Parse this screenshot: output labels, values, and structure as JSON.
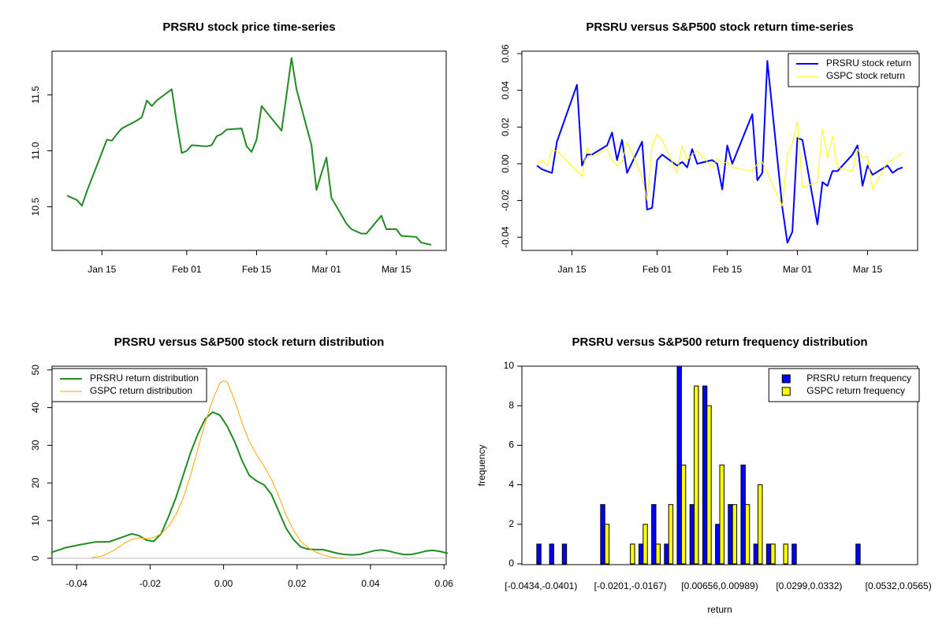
{
  "chart_data": [
    {
      "type": "line",
      "title": "PRSRU stock price time-series",
      "x": [
        "Jan 08",
        "Jan 09",
        "Jan 10",
        "Jan 11",
        "Jan 12",
        "Jan 16",
        "Jan 17",
        "Jan 18",
        "Jan 19",
        "Jan 22",
        "Jan 23",
        "Jan 24",
        "Jan 25",
        "Jan 26",
        "Jan 29",
        "Jan 30",
        "Jan 31",
        "Feb 01",
        "Feb 02",
        "Feb 05",
        "Feb 06",
        "Feb 07",
        "Feb 08",
        "Feb 09",
        "Feb 12",
        "Feb 13",
        "Feb 14",
        "Feb 15",
        "Feb 16",
        "Feb 20",
        "Feb 21",
        "Feb 22",
        "Feb 23",
        "Feb 26",
        "Feb 27",
        "Feb 28",
        "Mar 01",
        "Mar 02",
        "Mar 05",
        "Mar 06",
        "Mar 07",
        "Mar 08",
        "Mar 09",
        "Mar 12",
        "Mar 13",
        "Mar 14",
        "Mar 15",
        "Mar 16",
        "Mar 19",
        "Mar 20",
        "Mar 21",
        "Mar 22"
      ],
      "series": [
        {
          "color": "#228B22",
          "values": [
            10.6,
            10.58,
            10.56,
            10.51,
            10.64,
            11.1,
            11.09,
            11.15,
            11.2,
            11.27,
            11.3,
            11.45,
            11.4,
            11.45,
            11.55,
            11.25,
            10.98,
            11.0,
            11.05,
            11.04,
            11.05,
            11.13,
            11.15,
            11.19,
            11.2,
            11.04,
            10.99,
            11.1,
            11.4,
            11.18,
            11.5,
            11.83,
            11.55,
            11.05,
            10.65,
            10.8,
            10.94,
            10.58,
            10.35,
            10.3,
            10.28,
            10.26,
            10.26,
            10.42,
            10.3,
            10.3,
            10.3,
            10.24,
            10.23,
            10.18,
            10.17,
            10.16
          ]
        }
      ],
      "xlim": [
        "Jan 05",
        "Mar 25"
      ],
      "xticks": [
        "Jan 15",
        "Feb 01",
        "Feb 15",
        "Mar 01",
        "Mar 15"
      ],
      "ylim": [
        10.11,
        11.89
      ],
      "yticks": [
        10.5,
        {
          "value": 11,
          "label": "11.0"
        },
        11.5
      ]
    },
    {
      "type": "line",
      "title": "PRSRU versus S&P500 stock return time-series",
      "x": [
        "Jan 08",
        "Jan 09",
        "Jan 10",
        "Jan 11",
        "Jan 12",
        "Jan 16",
        "Jan 17",
        "Jan 18",
        "Jan 19",
        "Jan 22",
        "Jan 23",
        "Jan 24",
        "Jan 25",
        "Jan 26",
        "Jan 29",
        "Jan 30",
        "Jan 31",
        "Feb 01",
        "Feb 02",
        "Feb 05",
        "Feb 06",
        "Feb 07",
        "Feb 08",
        "Feb 09",
        "Feb 12",
        "Feb 13",
        "Feb 14",
        "Feb 15",
        "Feb 16",
        "Feb 20",
        "Feb 21",
        "Feb 22",
        "Feb 23",
        "Feb 26",
        "Feb 27",
        "Feb 28",
        "Mar 01",
        "Mar 02",
        "Mar 05",
        "Mar 06",
        "Mar 07",
        "Mar 08",
        "Mar 09",
        "Mar 12",
        "Mar 13",
        "Mar 14",
        "Mar 15",
        "Mar 16",
        "Mar 19",
        "Mar 20",
        "Mar 21",
        "Mar 22"
      ],
      "series": [
        {
          "name": "PRSRU stock return",
          "color": "#0000FF",
          "values": [
            -0.001,
            -0.003,
            -0.004,
            -0.005,
            0.012,
            0.043,
            -0.001,
            0.005,
            0.005,
            0.01,
            0.017,
            0.002,
            0.013,
            -0.005,
            0.012,
            -0.025,
            -0.024,
            0.002,
            0.005,
            -0.001,
            0.001,
            -0.002,
            0.008,
            0.0,
            0.002,
            0.0,
            -0.014,
            0.01,
            0.0,
            0.027,
            -0.009,
            -0.005,
            0.056,
            -0.024,
            -0.043,
            -0.037,
            0.014,
            0.013,
            -0.033,
            -0.01,
            -0.012,
            -0.004,
            -0.004,
            0.005,
            0.01,
            -0.012,
            -0.001,
            -0.006,
            -0.001,
            -0.005,
            -0.003,
            -0.002
          ]
        },
        {
          "name": "GSPC stock return",
          "color": "#FFFF00",
          "values": [
            0.0,
            0.002,
            -0.001,
            0.007,
            0.007,
            -0.004,
            -0.007,
            0.009,
            0.004,
            0.008,
            0.002,
            -0.001,
            0.001,
            0.012,
            -0.007,
            -0.02,
            0.01,
            0.016,
            0.013,
            -0.005,
            0.01,
            0.002,
            0.005,
            0.007,
            -0.002,
            0.003,
            0.0,
            0.001,
            -0.002,
            -0.004,
            0.0,
            0.001,
            -0.005,
            -0.023,
            0.005,
            0.011,
            0.023,
            -0.013,
            -0.01,
            0.019,
            0.003,
            0.015,
            -0.002,
            -0.004,
            0.008,
            0.003,
            0.004,
            -0.014,
            0.001,
            0.002,
            0.004,
            0.006
          ]
        }
      ],
      "xlim": [
        "Jan 05",
        "Mar 25"
      ],
      "xticks": [
        "Jan 15",
        "Feb 01",
        "Feb 15",
        "Mar 01",
        "Mar 15"
      ],
      "ylim": [
        -0.0472,
        0.0613
      ],
      "yticks": [
        -0.04,
        -0.02,
        {
          "value": 0,
          "label": "0.00"
        },
        0.02,
        0.04,
        0.06
      ],
      "legend": "topright"
    },
    {
      "type": "line",
      "title": "PRSRU versus S&P500 stock return distribution",
      "series": [
        {
          "name": "PRSRU return distribution",
          "color": "#228B22",
          "x": [
            -0.047,
            -0.043,
            -0.039,
            -0.035,
            -0.031,
            -0.027,
            -0.025,
            -0.023,
            -0.021,
            -0.019,
            -0.017,
            -0.015,
            -0.013,
            -0.011,
            -0.009,
            -0.007,
            -0.005,
            -0.003,
            -0.001,
            0.001,
            0.003,
            0.005,
            0.007,
            0.009,
            0.011,
            0.013,
            0.015,
            0.017,
            0.019,
            0.021,
            0.023,
            0.025,
            0.027,
            0.029,
            0.031,
            0.033,
            0.035,
            0.037,
            0.039,
            0.041,
            0.043,
            0.045,
            0.047,
            0.049,
            0.051,
            0.053,
            0.055,
            0.057,
            0.059,
            0.061
          ],
          "values": [
            1.5,
            2.8,
            3.6,
            4.3,
            4.4,
            5.8,
            6.5,
            6.0,
            4.8,
            4.5,
            6.5,
            11,
            16,
            22,
            28,
            33,
            37,
            38.8,
            38,
            35,
            31,
            26,
            22,
            20.5,
            19.5,
            17,
            12.5,
            8,
            5,
            3,
            2.4,
            2.3,
            2.3,
            1.8,
            1.3,
            1.0,
            0.9,
            1.0,
            1.5,
            2.0,
            2.2,
            1.9,
            1.4,
            1.0,
            1.0,
            1.4,
            1.9,
            2.1,
            1.8,
            1.3
          ]
        },
        {
          "name": "GSPC return distribution",
          "color": "#FFA500",
          "x": [
            -0.036,
            -0.033,
            -0.03,
            -0.027,
            -0.025,
            -0.023,
            -0.021,
            -0.019,
            -0.017,
            -0.015,
            -0.013,
            -0.011,
            -0.009,
            -0.007,
            -0.005,
            -0.003,
            -0.001,
            0.0,
            0.001,
            0.003,
            0.005,
            0.007,
            0.009,
            0.011,
            0.013,
            0.015,
            0.017,
            0.019,
            0.021,
            0.023,
            0.025,
            0.027,
            0.029,
            0.031,
            0.033
          ],
          "values": [
            0.1,
            0.6,
            2.0,
            4.0,
            5.0,
            5.4,
            5.2,
            5.5,
            6.5,
            8.5,
            11.5,
            16,
            22,
            29,
            36,
            42,
            46.5,
            47.2,
            46.8,
            42,
            36,
            31,
            27.5,
            24.5,
            21,
            16.5,
            11.5,
            7.5,
            4.5,
            2.8,
            1.7,
            0.9,
            0.4,
            0.1,
            0.0
          ]
        }
      ],
      "xlim": [
        -0.0467,
        0.0606
      ],
      "xticks": [
        -0.04,
        -0.02,
        {
          "value": 0,
          "label": "0.00"
        },
        0.02,
        0.04,
        0.06
      ],
      "ylim": [
        -1.7,
        51
      ],
      "yticks": [
        0,
        10,
        20,
        30,
        40,
        50
      ],
      "zero_line": true,
      "legend": "topleft"
    },
    {
      "type": "bar",
      "title": "PRSRU versus S&P500 return frequency distribution",
      "xlabel": "return",
      "ylabel": "frequency",
      "categories": [
        "[-0.0434,-0.0401)",
        null,
        null,
        null,
        null,
        null,
        null,
        "[-0.0201,-0.0167)",
        null,
        null,
        null,
        null,
        null,
        null,
        "[0.00656,0.00989)",
        null,
        null,
        null,
        null,
        null,
        null,
        "[0.0299,0.0332)",
        null,
        null,
        null,
        null,
        null,
        null,
        "[0.0532,0.0565)"
      ],
      "series": [
        {
          "name": "PRSRU return frequency",
          "color": "#0000FF",
          "values": [
            1,
            1,
            1,
            0,
            0,
            3,
            0,
            0,
            1,
            3,
            1,
            10,
            3,
            9,
            2,
            3,
            5,
            1,
            1,
            0,
            1,
            0,
            0,
            0,
            0,
            1,
            0,
            0,
            0
          ]
        },
        {
          "name": "GSPC return frequency",
          "color": "#FFFF00",
          "values": [
            0,
            0,
            0,
            0,
            0,
            2,
            0,
            1,
            2,
            1,
            3,
            5,
            9,
            8,
            5,
            3,
            3,
            4,
            1,
            1,
            0,
            0,
            0,
            0,
            0,
            0,
            0,
            0,
            0
          ]
        }
      ],
      "ylim": [
        -0.04,
        10
      ],
      "yticks": [
        0,
        2,
        4,
        6,
        8,
        10
      ],
      "legend": "topright"
    }
  ]
}
